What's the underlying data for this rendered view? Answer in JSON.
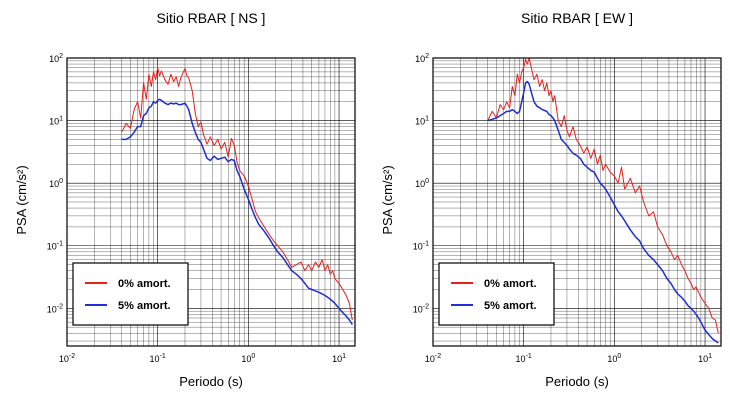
{
  "chart_data": [
    {
      "type": "line",
      "title": "Sitio RBAR [ NS ]",
      "xlabel": "Periodo (s)",
      "ylabel": "PSA (cm/s²)",
      "xscale": "log",
      "yscale": "log",
      "xlim": [
        0.01,
        15
      ],
      "ylim": [
        0.0025,
        100
      ],
      "grid": true,
      "legend_position": "bottom-left",
      "x_ticks": [
        {
          "base": "10",
          "exp": "-2"
        },
        {
          "base": "10",
          "exp": "-1"
        },
        {
          "base": "10",
          "exp": "0"
        },
        {
          "base": "10",
          "exp": "1"
        }
      ],
      "y_ticks": [
        {
          "base": "10",
          "exp": "-2"
        },
        {
          "base": "10",
          "exp": "-1"
        },
        {
          "base": "10",
          "exp": "0"
        },
        {
          "base": "10",
          "exp": "1"
        },
        {
          "base": "10",
          "exp": "2"
        }
      ],
      "series": [
        {
          "name": "0% amort.",
          "color": "#e8201c",
          "x": [
            0.04,
            0.045,
            0.05,
            0.055,
            0.06,
            0.065,
            0.07,
            0.075,
            0.08,
            0.085,
            0.09,
            0.095,
            0.1,
            0.105,
            0.11,
            0.12,
            0.13,
            0.14,
            0.15,
            0.16,
            0.17,
            0.18,
            0.19,
            0.2,
            0.21,
            0.22,
            0.24,
            0.26,
            0.28,
            0.3,
            0.32,
            0.35,
            0.38,
            0.42,
            0.46,
            0.5,
            0.55,
            0.6,
            0.65,
            0.7,
            0.75,
            0.8,
            0.9,
            1.0,
            1.1,
            1.2,
            1.3,
            1.5,
            1.7,
            1.9,
            2.1,
            2.4,
            2.7,
            3.0,
            3.4,
            3.8,
            4.2,
            4.6,
            5.0,
            5.5,
            6.0,
            6.5,
            7.0,
            7.5,
            8.0,
            8.5,
            9.0,
            10.0,
            11.0,
            12.0,
            13.0,
            14.0
          ],
          "values": [
            6.5,
            9.0,
            7.5,
            15.0,
            20.0,
            11.0,
            40.0,
            22.0,
            55.0,
            35.0,
            60.0,
            45.0,
            70.0,
            52.0,
            62.0,
            45.0,
            38.0,
            55.0,
            42.0,
            50.0,
            35.0,
            48.0,
            58.0,
            68.0,
            52.0,
            48.0,
            30.0,
            13.0,
            8.0,
            9.5,
            6.0,
            4.2,
            5.5,
            4.0,
            5.0,
            3.5,
            4.5,
            2.6,
            5.2,
            4.0,
            2.2,
            1.6,
            1.3,
            0.9,
            0.55,
            0.35,
            0.28,
            0.2,
            0.15,
            0.12,
            0.1,
            0.08,
            0.06,
            0.045,
            0.05,
            0.055,
            0.04,
            0.05,
            0.04,
            0.055,
            0.045,
            0.06,
            0.04,
            0.05,
            0.035,
            0.04,
            0.03,
            0.025,
            0.02,
            0.016,
            0.012,
            0.0065
          ]
        },
        {
          "name": "5% amort.",
          "color": "#1e2dd8",
          "x": [
            0.04,
            0.045,
            0.05,
            0.055,
            0.06,
            0.065,
            0.07,
            0.075,
            0.08,
            0.085,
            0.09,
            0.095,
            0.1,
            0.105,
            0.11,
            0.12,
            0.13,
            0.14,
            0.15,
            0.16,
            0.17,
            0.18,
            0.19,
            0.2,
            0.21,
            0.22,
            0.24,
            0.26,
            0.28,
            0.3,
            0.32,
            0.35,
            0.38,
            0.42,
            0.46,
            0.5,
            0.55,
            0.6,
            0.65,
            0.7,
            0.75,
            0.8,
            0.9,
            1.0,
            1.1,
            1.2,
            1.3,
            1.5,
            1.7,
            1.9,
            2.1,
            2.4,
            2.7,
            3.0,
            3.4,
            3.8,
            4.2,
            4.6,
            5.0,
            5.5,
            6.0,
            6.5,
            7.0,
            7.5,
            8.0,
            8.5,
            9.0,
            10.0,
            11.0,
            12.0,
            13.0,
            14.0
          ],
          "values": [
            5.0,
            5.0,
            5.5,
            6.5,
            8.0,
            8.0,
            12.0,
            13.0,
            16.0,
            17.0,
            20.0,
            19.0,
            21.0,
            22.0,
            21.0,
            19.0,
            18.0,
            19.0,
            18.5,
            19.0,
            18.0,
            18.0,
            18.5,
            19.0,
            17.0,
            15.0,
            9.0,
            6.5,
            5.0,
            4.5,
            3.5,
            2.5,
            2.3,
            2.7,
            2.4,
            2.5,
            2.6,
            2.2,
            2.4,
            2.3,
            1.6,
            1.3,
            0.8,
            0.55,
            0.38,
            0.28,
            0.22,
            0.17,
            0.13,
            0.1,
            0.08,
            0.065,
            0.05,
            0.04,
            0.035,
            0.03,
            0.025,
            0.021,
            0.02,
            0.019,
            0.018,
            0.017,
            0.016,
            0.015,
            0.014,
            0.013,
            0.012,
            0.01,
            0.0085,
            0.0075,
            0.0065,
            0.0055
          ]
        }
      ]
    },
    {
      "type": "line",
      "title": "Sitio RBAR [ EW ]",
      "xlabel": "Periodo (s)",
      "ylabel": "PSA (cm/s²)",
      "xscale": "log",
      "yscale": "log",
      "xlim": [
        0.01,
        15
      ],
      "ylim": [
        0.0025,
        100
      ],
      "grid": true,
      "legend_position": "bottom-left",
      "x_ticks": [
        {
          "base": "10",
          "exp": "-2"
        },
        {
          "base": "10",
          "exp": "-1"
        },
        {
          "base": "10",
          "exp": "0"
        },
        {
          "base": "10",
          "exp": "1"
        }
      ],
      "y_ticks": [
        {
          "base": "10",
          "exp": "-2"
        },
        {
          "base": "10",
          "exp": "-1"
        },
        {
          "base": "10",
          "exp": "0"
        },
        {
          "base": "10",
          "exp": "1"
        },
        {
          "base": "10",
          "exp": "2"
        }
      ],
      "series": [
        {
          "name": "0% amort.",
          "color": "#e8201c",
          "x": [
            0.04,
            0.045,
            0.05,
            0.055,
            0.06,
            0.065,
            0.07,
            0.075,
            0.08,
            0.085,
            0.09,
            0.095,
            0.1,
            0.105,
            0.11,
            0.115,
            0.12,
            0.13,
            0.14,
            0.15,
            0.16,
            0.17,
            0.18,
            0.19,
            0.2,
            0.21,
            0.22,
            0.24,
            0.26,
            0.28,
            0.3,
            0.32,
            0.35,
            0.38,
            0.42,
            0.46,
            0.5,
            0.55,
            0.6,
            0.65,
            0.7,
            0.75,
            0.8,
            0.9,
            1.0,
            1.1,
            1.2,
            1.3,
            1.5,
            1.7,
            1.9,
            2.1,
            2.4,
            2.7,
            3.0,
            3.4,
            3.8,
            4.2,
            4.6,
            5.0,
            5.5,
            6.0,
            6.5,
            7.0,
            7.5,
            8.0,
            8.5,
            9.0,
            10.0,
            11.0,
            12.0,
            13.0,
            14.0
          ],
          "values": [
            10.0,
            14.0,
            11.0,
            18.0,
            15.0,
            20.0,
            16.0,
            35.0,
            25.0,
            55.0,
            40.0,
            60.0,
            70.0,
            95.0,
            80.0,
            100.0,
            75.0,
            45.0,
            55.0,
            35.0,
            45.0,
            30.0,
            40.0,
            25.0,
            30.0,
            20.0,
            25.0,
            10.0,
            8.0,
            12.0,
            7.0,
            5.5,
            8.0,
            5.0,
            4.0,
            3.0,
            3.8,
            2.5,
            3.5,
            2.0,
            2.8,
            1.6,
            2.0,
            1.5,
            1.3,
            1.0,
            1.8,
            0.8,
            1.2,
            0.7,
            0.9,
            0.5,
            0.3,
            0.35,
            0.2,
            0.15,
            0.1,
            0.08,
            0.06,
            0.07,
            0.05,
            0.04,
            0.03,
            0.025,
            0.02,
            0.022,
            0.018,
            0.015,
            0.012,
            0.01,
            0.007,
            0.0065,
            0.004
          ]
        },
        {
          "name": "5% amort.",
          "color": "#1e2dd8",
          "x": [
            0.04,
            0.045,
            0.05,
            0.055,
            0.06,
            0.065,
            0.07,
            0.075,
            0.08,
            0.085,
            0.09,
            0.095,
            0.1,
            0.105,
            0.11,
            0.115,
            0.12,
            0.13,
            0.14,
            0.15,
            0.16,
            0.17,
            0.18,
            0.19,
            0.2,
            0.21,
            0.22,
            0.24,
            0.26,
            0.28,
            0.3,
            0.32,
            0.35,
            0.38,
            0.42,
            0.46,
            0.5,
            0.55,
            0.6,
            0.65,
            0.7,
            0.75,
            0.8,
            0.9,
            1.0,
            1.1,
            1.2,
            1.3,
            1.5,
            1.7,
            1.9,
            2.1,
            2.4,
            2.7,
            3.0,
            3.4,
            3.8,
            4.2,
            4.6,
            5.0,
            5.5,
            6.0,
            6.5,
            7.0,
            7.5,
            8.0,
            8.5,
            9.0,
            10.0,
            11.0,
            12.0,
            13.0,
            14.0
          ],
          "values": [
            10.0,
            10.5,
            11.0,
            12.0,
            13.0,
            14.0,
            14.0,
            15.0,
            14.0,
            13.0,
            14.0,
            20.0,
            28.0,
            40.0,
            42.0,
            38.0,
            30.0,
            20.0,
            17.0,
            16.0,
            15.0,
            14.5,
            14.0,
            12.5,
            12.0,
            11.0,
            10.0,
            7.0,
            5.0,
            4.5,
            4.0,
            3.5,
            3.0,
            2.8,
            2.5,
            2.0,
            1.8,
            1.6,
            1.5,
            1.2,
            1.0,
            0.9,
            0.8,
            0.6,
            0.45,
            0.35,
            0.3,
            0.25,
            0.18,
            0.14,
            0.12,
            0.09,
            0.07,
            0.06,
            0.05,
            0.04,
            0.03,
            0.025,
            0.02,
            0.017,
            0.015,
            0.013,
            0.011,
            0.01,
            0.009,
            0.008,
            0.007,
            0.006,
            0.0045,
            0.0038,
            0.0033,
            0.003,
            0.0028
          ]
        }
      ]
    }
  ]
}
